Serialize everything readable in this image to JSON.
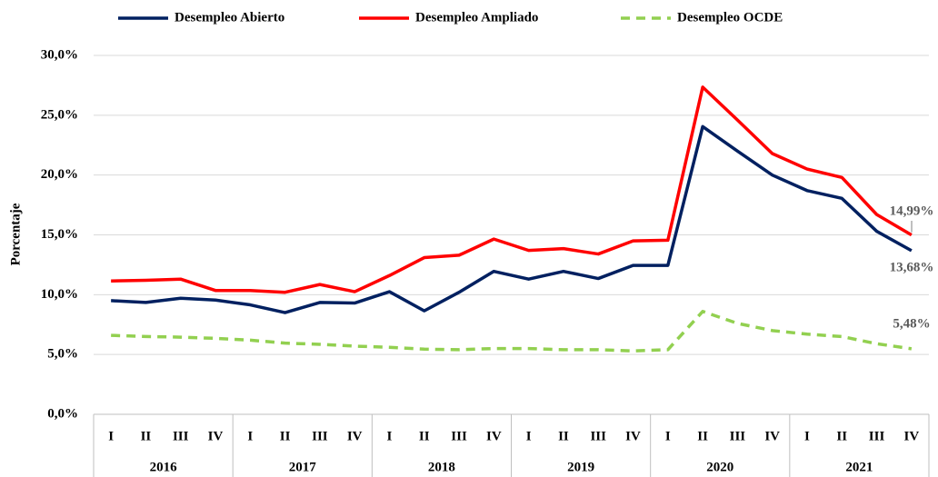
{
  "chart_data": {
    "type": "line",
    "y_axis_label": "Porcentaje",
    "categories": [
      "I",
      "II",
      "III",
      "IV",
      "I",
      "II",
      "III",
      "IV",
      "I",
      "II",
      "III",
      "IV",
      "I",
      "II",
      "III",
      "IV",
      "I",
      "II",
      "III",
      "IV",
      "I",
      "II",
      "III",
      "IV"
    ],
    "category_groups": [
      "2016",
      "2017",
      "2018",
      "2019",
      "2020",
      "2021"
    ],
    "ylim": [
      0,
      30
    ],
    "yticks": [
      {
        "value": 0,
        "label": "0,0%"
      },
      {
        "value": 5,
        "label": "5,0%"
      },
      {
        "value": 10,
        "label": "10,0%"
      },
      {
        "value": 15,
        "label": "15,0%"
      },
      {
        "value": 20,
        "label": "20,0%"
      },
      {
        "value": 25,
        "label": "25,0%"
      },
      {
        "value": 30,
        "label": "30,0%"
      }
    ],
    "grid": true,
    "legend": "top",
    "series": [
      {
        "name": "Desempleo Abierto",
        "color": "#002060",
        "line_style": "solid",
        "values": [
          9.5,
          9.35,
          9.7,
          9.55,
          9.15,
          8.5,
          9.35,
          9.3,
          10.25,
          8.65,
          10.2,
          11.95,
          11.3,
          11.95,
          11.35,
          12.45,
          12.45,
          24.05,
          22.0,
          20.0,
          18.7,
          18.05,
          15.3,
          13.68
        ],
        "value_labels": [
          null,
          null,
          null,
          null,
          null,
          null,
          null,
          null,
          null,
          null,
          null,
          null,
          null,
          null,
          null,
          null,
          null,
          null,
          null,
          null,
          null,
          null,
          null,
          "13,68%"
        ]
      },
      {
        "name": "Desempleo Ampliado",
        "color": "#ff0000",
        "line_style": "solid",
        "values": [
          11.15,
          11.2,
          11.3,
          10.35,
          10.35,
          10.2,
          10.85,
          10.25,
          11.6,
          13.1,
          13.3,
          14.65,
          13.7,
          13.85,
          13.4,
          14.5,
          14.55,
          27.35,
          24.6,
          21.8,
          20.5,
          19.8,
          16.7,
          14.99
        ],
        "value_labels": [
          null,
          null,
          null,
          null,
          null,
          null,
          null,
          null,
          null,
          null,
          null,
          null,
          null,
          null,
          null,
          null,
          null,
          null,
          null,
          null,
          null,
          null,
          null,
          "14,99%"
        ]
      },
      {
        "name": "Desempleo OCDE",
        "color": "#92d050",
        "line_style": "dashed",
        "values": [
          6.6,
          6.5,
          6.45,
          6.35,
          6.2,
          5.95,
          5.85,
          5.7,
          5.6,
          5.45,
          5.4,
          5.5,
          5.5,
          5.4,
          5.4,
          5.3,
          5.4,
          8.6,
          7.6,
          7.0,
          6.7,
          6.5,
          5.9,
          5.48
        ],
        "value_labels": [
          null,
          null,
          null,
          null,
          null,
          null,
          null,
          null,
          null,
          null,
          null,
          null,
          null,
          null,
          null,
          null,
          null,
          null,
          null,
          null,
          null,
          null,
          null,
          "5,48%"
        ]
      }
    ]
  }
}
